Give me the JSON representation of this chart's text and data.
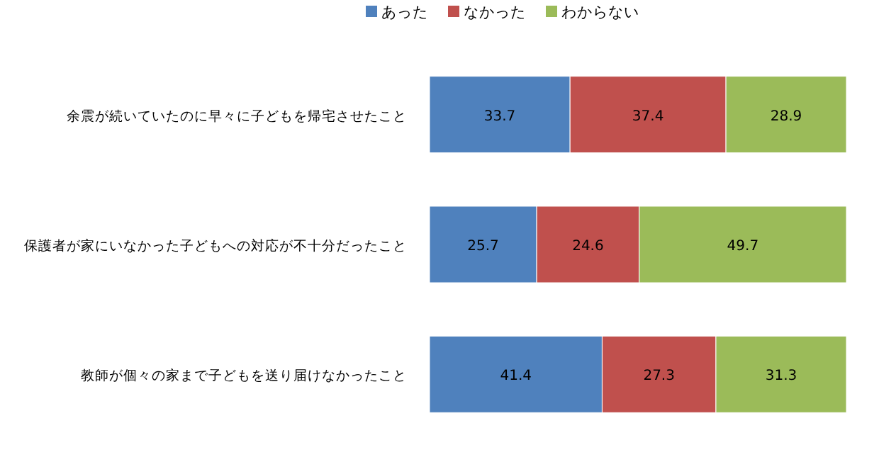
{
  "chart_data": {
    "type": "bar",
    "orientation": "horizontal",
    "stacked": true,
    "data_labels": true,
    "legend": "top",
    "categories": [
      "余震が続いていたのに早々に子どもを帰宅させたこと",
      "保護者が家にいなかった子どもへの対応が不十分だったこと",
      "教師が個々の家まで子どもを送り届けなかったこと"
    ],
    "series": [
      {
        "name": "あった",
        "color": "#4f81bd",
        "values": [
          33.7,
          25.7,
          41.4
        ]
      },
      {
        "name": "なかった",
        "color": "#c0504d",
        "values": [
          37.4,
          24.6,
          27.3
        ]
      },
      {
        "name": "わからない",
        "color": "#9bbb59",
        "values": [
          28.9,
          49.7,
          31.3
        ]
      }
    ]
  }
}
